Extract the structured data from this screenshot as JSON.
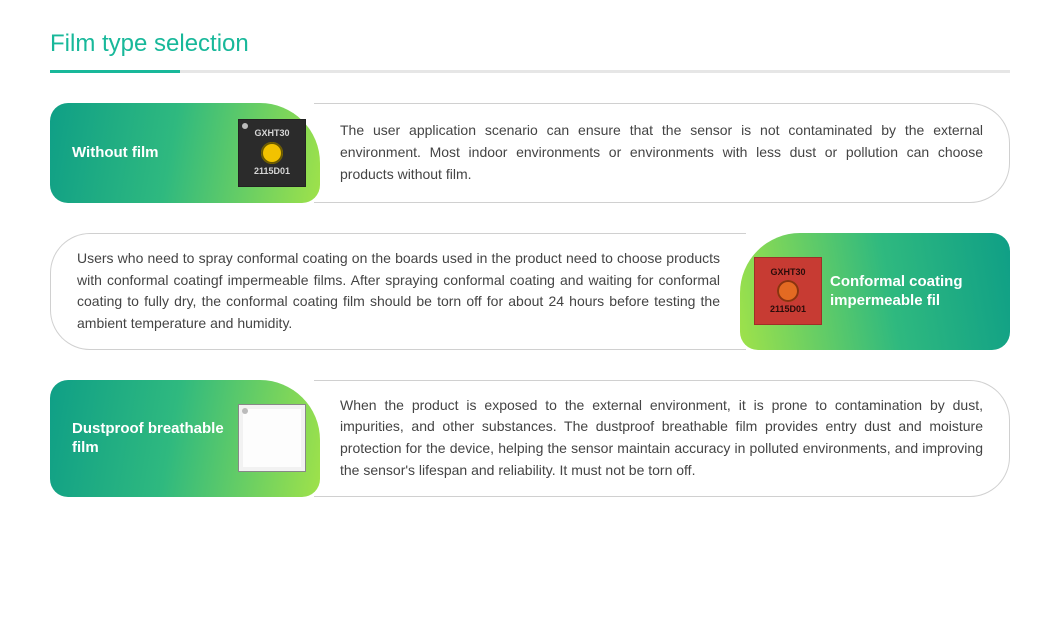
{
  "section": {
    "title": "Film type selection"
  },
  "items": [
    {
      "side": "left",
      "label": "Without film",
      "chip": {
        "style": "black",
        "top": "GXHT30",
        "bottom": "2115D01",
        "dot": true
      },
      "desc": "The user application scenario can ensure that the sensor is not contaminated by the external environment. Most indoor environments or environments with less dust or pollution can choose products without film."
    },
    {
      "side": "right",
      "label": "Conformal coating impermeable fil",
      "chip": {
        "style": "red",
        "top": "GXHT30",
        "bottom": "2115D01",
        "dot": true
      },
      "desc": "Users who need to spray conformal coating on the boards used in the product need to choose products with conformal coatingf impermeable films. After spraying conformal coating and waiting for conformal coating to fully dry, the conformal coating film should be torn off for about 24 hours before testing the ambient temperature and humidity."
    },
    {
      "side": "left",
      "label": "Dustproof breathable film",
      "chip": {
        "style": "white",
        "top": "",
        "bottom": "",
        "dot": false
      },
      "desc": "When the product is exposed to the external environment, it is prone to contamination by dust, impurities, and other substances. The dustproof breathable film provides entry dust and moisture protection for the device, helping the sensor maintain accuracy in polluted environments, and improving the sensor's lifespan and reliability. It must not be torn off."
    }
  ]
}
